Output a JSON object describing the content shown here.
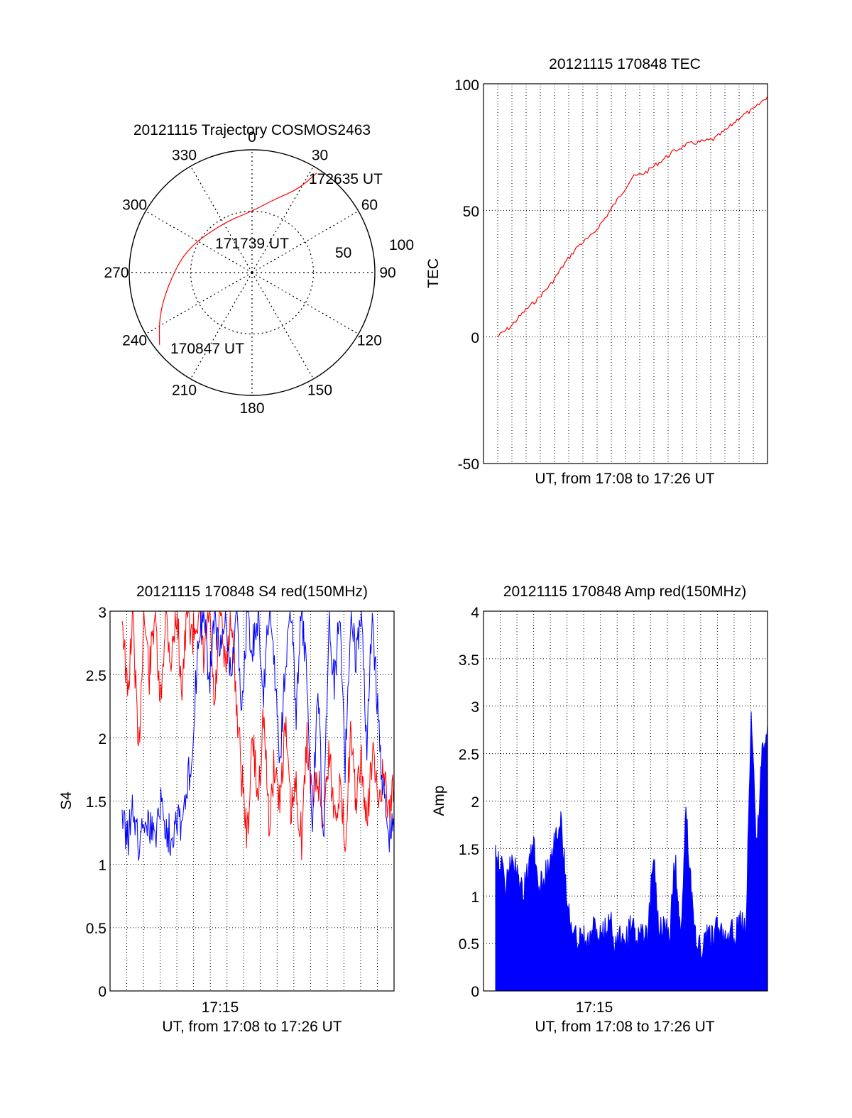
{
  "chart_data": [
    {
      "type": "polar",
      "title": "20121115 Trajectory COSMOS2463",
      "azimuth_labels": [
        "0",
        "30",
        "60",
        "90",
        "120",
        "150",
        "180",
        "210",
        "240",
        "270",
        "300",
        "330"
      ],
      "radial_labels": [
        "50",
        "100"
      ],
      "trajectory": {
        "color": "#ff0000",
        "points": [
          {
            "az": 232,
            "el": 4
          },
          {
            "az": 245,
            "el": 15
          },
          {
            "az": 262,
            "el": 28
          },
          {
            "az": 290,
            "el": 39
          },
          {
            "az": 330,
            "el": 48
          },
          {
            "az": 0,
            "el": 45
          },
          {
            "az": 18,
            "el": 33
          },
          {
            "az": 29,
            "el": 20
          },
          {
            "az": 33,
            "el": 3
          }
        ]
      },
      "annotations": [
        "170847 UT",
        "171739 UT",
        "172635 UT"
      ]
    },
    {
      "type": "line",
      "title": "20121115 170848 TEC",
      "xlabel": "UT, from 17:08 to 17:26 UT",
      "ylabel": "TEC",
      "ylim": [
        -50,
        100
      ],
      "yticks": [
        "100",
        "50",
        "0",
        "-50"
      ],
      "grid": true,
      "series": [
        {
          "color": "#ff0000",
          "x_frac": [
            0,
            0.05,
            0.1,
            0.15,
            0.2,
            0.25,
            0.3,
            0.35,
            0.4,
            0.45,
            0.5,
            0.55,
            0.6,
            0.65,
            0.7,
            0.75,
            0.8,
            0.85,
            0.9,
            0.95,
            1.0
          ],
          "values": [
            0,
            4,
            10,
            15,
            21,
            29,
            36,
            40,
            47,
            55,
            63,
            65,
            69,
            73,
            76,
            77,
            78,
            82,
            87,
            90,
            95
          ]
        }
      ]
    },
    {
      "type": "line",
      "title": "20121115 170848 S4 red(150MHz)",
      "xlabel": "UT, from 17:08 to 17:26 UT",
      "ylabel": "S4",
      "ylim": [
        0,
        3
      ],
      "yticks": [
        "3",
        "2.5",
        "2",
        "1.5",
        "1",
        "0.5",
        "0"
      ],
      "xtick_label": "17:15",
      "grid": true,
      "series": [
        {
          "color": "#ff0000",
          "x_frac": [
            0,
            0.02,
            0.04,
            0.06,
            0.08,
            0.1,
            0.12,
            0.14,
            0.16,
            0.18,
            0.2,
            0.22,
            0.24,
            0.26,
            0.28,
            0.3,
            0.32,
            0.34,
            0.36,
            0.38,
            0.4,
            0.42,
            0.44,
            0.46,
            0.48,
            0.5,
            0.52,
            0.54,
            0.56,
            0.58,
            0.6,
            0.62,
            0.64,
            0.66,
            0.68,
            0.7,
            0.72,
            0.74,
            0.76,
            0.78,
            0.8,
            0.82,
            0.84,
            0.86,
            0.88,
            0.9,
            0.92,
            0.94,
            0.96,
            0.98,
            1.0
          ],
          "values": [
            3.0,
            2.3,
            3.0,
            1.8,
            3.0,
            2.5,
            3.0,
            2.2,
            3.0,
            2.6,
            3.0,
            2.4,
            3.0,
            2.8,
            3.0,
            2.6,
            3.0,
            2.2,
            3.0,
            2.5,
            3.0,
            2.3,
            1.7,
            1.2,
            2.0,
            1.5,
            2.2,
            1.3,
            1.8,
            1.5,
            2.1,
            1.4,
            1.6,
            1.2,
            2.0,
            1.5,
            1.7,
            1.3,
            1.9,
            1.4,
            1.6,
            1.2,
            2.0,
            1.5,
            1.8,
            1.3,
            1.9,
            1.5,
            1.7,
            1.4,
            1.6
          ]
        },
        {
          "color": "#0000ff",
          "x_frac": [
            0,
            0.02,
            0.04,
            0.06,
            0.08,
            0.1,
            0.12,
            0.14,
            0.16,
            0.18,
            0.2,
            0.22,
            0.24,
            0.26,
            0.28,
            0.3,
            0.32,
            0.34,
            0.36,
            0.38,
            0.4,
            0.42,
            0.44,
            0.46,
            0.48,
            0.5,
            0.52,
            0.54,
            0.56,
            0.58,
            0.6,
            0.62,
            0.64,
            0.66,
            0.68,
            0.7,
            0.72,
            0.74,
            0.76,
            0.78,
            0.8,
            0.82,
            0.84,
            0.86,
            0.88,
            0.9,
            0.92,
            0.94,
            0.96,
            0.98,
            1.0
          ],
          "values": [
            1.4,
            1.2,
            1.5,
            1.1,
            1.4,
            1.3,
            1.2,
            1.5,
            1.3,
            1.2,
            1.4,
            1.3,
            1.6,
            2.0,
            2.8,
            3.0,
            2.4,
            3.0,
            2.6,
            3.0,
            2.5,
            3.0,
            2.2,
            3.0,
            2.7,
            3.0,
            2.3,
            3.0,
            2.6,
            1.8,
            2.6,
            3.0,
            2.2,
            3.0,
            2.4,
            1.3,
            2.5,
            1.1,
            3.0,
            2.4,
            3.0,
            1.8,
            3.0,
            2.6,
            3.0,
            1.9,
            3.0,
            2.2,
            1.6,
            1.2,
            1.3
          ]
        }
      ]
    },
    {
      "type": "bar",
      "title": "20121115 170848 Amp red(150MHz)",
      "xlabel": "UT, from 17:08 to 17:26 UT",
      "ylabel": "Amp",
      "ylim": [
        0,
        4
      ],
      "yticks": [
        "4",
        "3.5",
        "3",
        "2.5",
        "2",
        "1.5",
        "1",
        "0.5",
        "0"
      ],
      "xtick_label": "17:15",
      "grid": true,
      "series": [
        {
          "color": "#0000ff",
          "x_frac": [
            0,
            0.02,
            0.04,
            0.06,
            0.08,
            0.1,
            0.12,
            0.14,
            0.16,
            0.18,
            0.2,
            0.22,
            0.24,
            0.26,
            0.28,
            0.3,
            0.32,
            0.34,
            0.36,
            0.38,
            0.4,
            0.42,
            0.44,
            0.46,
            0.48,
            0.5,
            0.52,
            0.54,
            0.56,
            0.58,
            0.6,
            0.62,
            0.64,
            0.66,
            0.68,
            0.7,
            0.72,
            0.74,
            0.76,
            0.78,
            0.8,
            0.82,
            0.84,
            0.86,
            0.88,
            0.9,
            0.92,
            0.94,
            0.96,
            0.98,
            1.0
          ],
          "values": [
            1.5,
            1.3,
            1.1,
            1.4,
            1.2,
            1.0,
            1.3,
            1.5,
            1.1,
            1.2,
            1.4,
            1.6,
            1.8,
            1.1,
            0.6,
            0.55,
            0.6,
            0.5,
            0.7,
            0.55,
            0.6,
            0.8,
            0.5,
            0.6,
            0.55,
            0.7,
            0.5,
            0.6,
            0.55,
            1.5,
            0.6,
            0.7,
            0.6,
            1.4,
            0.55,
            1.9,
            1.0,
            0.5,
            0.45,
            0.6,
            0.55,
            0.7,
            0.6,
            0.65,
            0.6,
            0.7,
            0.65,
            2.9,
            1.5,
            2.5,
            2.8
          ]
        }
      ]
    }
  ]
}
